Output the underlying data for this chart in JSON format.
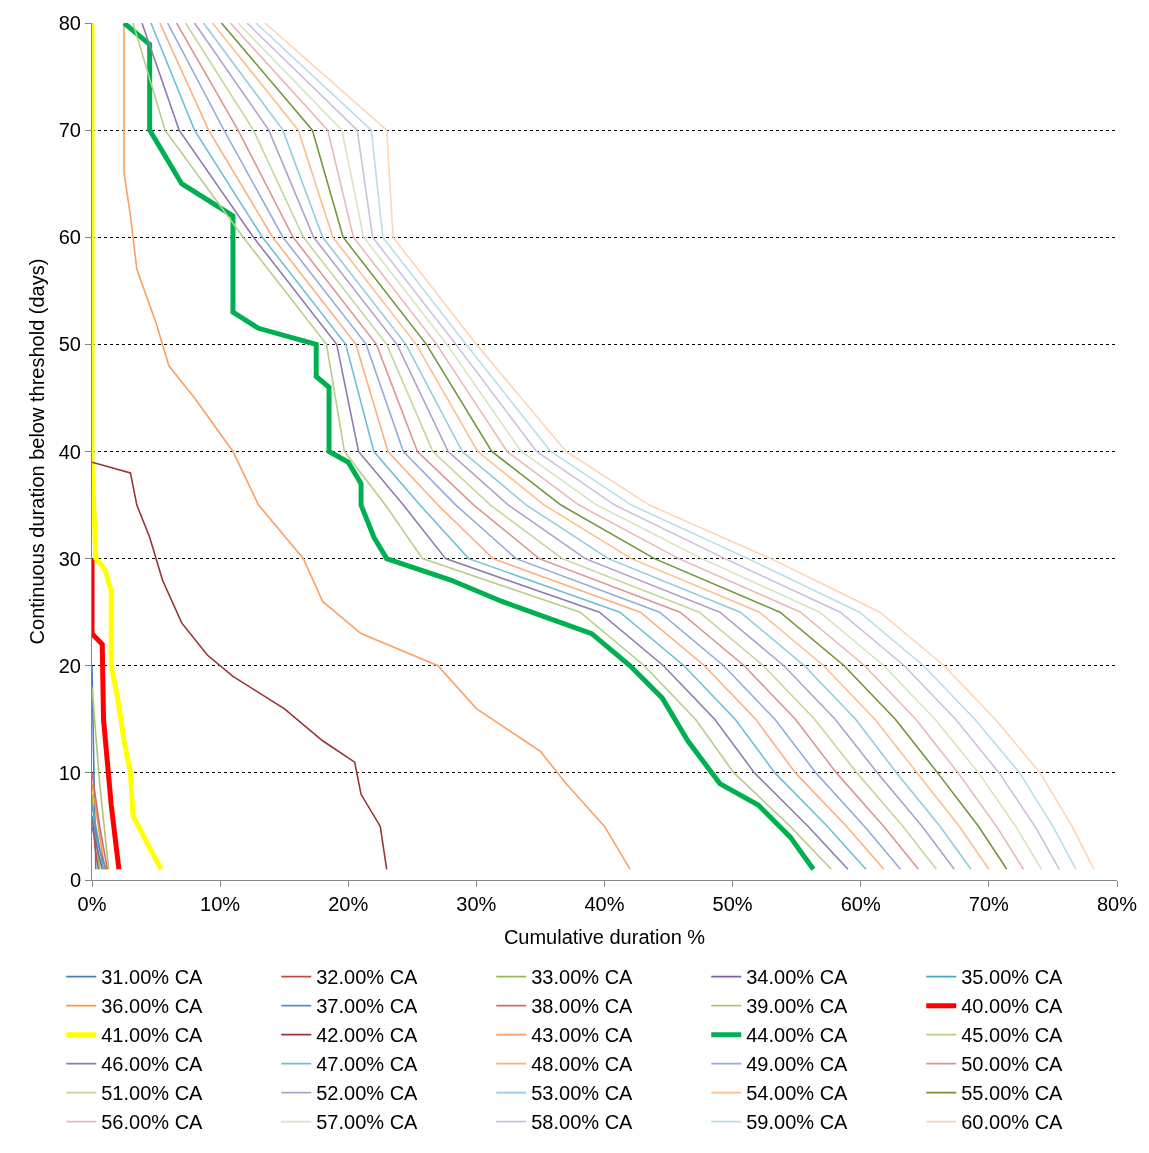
{
  "chart_data": {
    "type": "line",
    "xlabel": "Cumulative duration %",
    "ylabel": "Continuous duration below threshold (days)",
    "xlim": [
      0,
      80
    ],
    "ylim": [
      0,
      80
    ],
    "xticks": [
      {
        "value": 0,
        "label": "0%"
      },
      {
        "value": 10,
        "label": "10%"
      },
      {
        "value": 20,
        "label": "20%"
      },
      {
        "value": 30,
        "label": "30%"
      },
      {
        "value": 40,
        "label": "40%"
      },
      {
        "value": 50,
        "label": "50%"
      },
      {
        "value": 60,
        "label": "60%"
      },
      {
        "value": 70,
        "label": "70%"
      },
      {
        "value": 80,
        "label": "80%"
      }
    ],
    "yticks": [
      0,
      10,
      20,
      30,
      40,
      50,
      60,
      70,
      80
    ],
    "grid": "y",
    "legend": "bottom",
    "marker": "none",
    "line_style": "solid",
    "series": [
      {
        "name": "31.00% CA",
        "color": "#4a7ebb",
        "x": [
          0.3,
          0.15,
          0
        ],
        "values": [
          1,
          10,
          20
        ]
      },
      {
        "name": "32.00% CA",
        "color": "#be4b48",
        "x": [
          0.5,
          0.25,
          0
        ],
        "values": [
          1,
          3,
          6
        ]
      },
      {
        "name": "33.00% CA",
        "color": "#98b954",
        "x": [
          0.6,
          0.3,
          0
        ],
        "values": [
          1,
          4,
          8
        ]
      },
      {
        "name": "34.00% CA",
        "color": "#7d60a0",
        "x": [
          0.8,
          0.4,
          0
        ],
        "values": [
          1,
          3,
          5
        ]
      },
      {
        "name": "35.00% CA",
        "color": "#46aac5",
        "x": [
          0.9,
          0.45,
          0
        ],
        "values": [
          1,
          4,
          7
        ]
      },
      {
        "name": "36.00% CA",
        "color": "#f79646",
        "x": [
          1.0,
          0.5,
          0
        ],
        "values": [
          1,
          5,
          9
        ]
      },
      {
        "name": "37.00% CA",
        "color": "#5b8bc9",
        "x": [
          1.1,
          0.55,
          0
        ],
        "values": [
          1,
          3,
          6
        ]
      },
      {
        "name": "38.00% CA",
        "color": "#cd6b69",
        "x": [
          1.2,
          0.6,
          0
        ],
        "values": [
          1,
          5,
          10
        ]
      },
      {
        "name": "39.00% CA",
        "color": "#aac574",
        "x": [
          1.3,
          0.6,
          0
        ],
        "values": [
          1,
          9,
          18
        ]
      },
      {
        "name": "40.00% CA",
        "color": "#ff0000",
        "x": [
          2.1,
          1.5,
          1.2,
          0.9,
          0.8,
          0,
          0
        ],
        "values": [
          1,
          7,
          11,
          15,
          22,
          23,
          30
        ]
      },
      {
        "name": "41.00% CA",
        "color": "#ffff00",
        "x": [
          5.4,
          4.5,
          3.2,
          3,
          2.5,
          2,
          1.5,
          1.5,
          1,
          0.3,
          0,
          0
        ],
        "values": [
          1,
          3,
          6,
          10,
          13,
          17,
          20,
          27,
          29,
          30,
          39,
          80
        ]
      },
      {
        "name": "42.00% CA",
        "color": "#943634",
        "x": [
          23,
          22.5,
          21,
          20.5,
          18,
          15,
          11,
          9,
          7,
          5.5,
          4.5,
          3.5,
          3,
          0
        ],
        "values": [
          1,
          5,
          8,
          11,
          13,
          16,
          19,
          21,
          24,
          28,
          32,
          35,
          38,
          39
        ]
      },
      {
        "name": "43.00% CA",
        "color": "#f9a063",
        "x": [
          42,
          40,
          37,
          35,
          30,
          27,
          21,
          18,
          16.5,
          13,
          11,
          8,
          6,
          5,
          3.5,
          3,
          2.5,
          2.5
        ],
        "values": [
          1,
          5,
          9,
          12,
          16,
          20,
          23,
          26,
          30,
          35,
          40,
          45,
          48,
          52,
          57,
          62,
          66,
          80
        ]
      },
      {
        "name": "44.00% CA",
        "color": "#00b050",
        "x": [
          56.3,
          54.5,
          52,
          49,
          46.5,
          44.5,
          42,
          39,
          35.5,
          32,
          28,
          23,
          22,
          21,
          21,
          20,
          18.5,
          18.5,
          17.5,
          17.5,
          13,
          11,
          11,
          7,
          5,
          4.5,
          4.5,
          2.5
        ],
        "values": [
          1,
          4,
          7,
          9,
          13,
          17,
          20,
          23,
          24.5,
          26,
          28,
          30,
          32,
          35,
          37,
          39,
          40,
          46,
          47,
          50,
          51.5,
          53,
          62,
          65,
          69,
          70,
          78,
          80
        ]
      },
      {
        "name": "45.00% CA",
        "color": "#b3cf88",
        "x": [
          57.7,
          54.5,
          50.1,
          47.1,
          43.1,
          38.1,
          25.8,
          22.9,
          19.7,
          18.3,
          11.8,
          5.7,
          3.2
        ],
        "values": [
          1,
          5,
          10,
          15,
          20,
          25,
          30,
          35,
          40,
          50,
          60,
          70,
          80
        ]
      },
      {
        "name": "46.00% CA",
        "color": "#8f7bb0",
        "x": [
          59.0,
          55.9,
          51.7,
          48.6,
          44.6,
          39.6,
          27.6,
          24.3,
          20.8,
          19.1,
          12.6,
          6.8,
          3.9
        ],
        "values": [
          1,
          5,
          10,
          15,
          20,
          25,
          30,
          35,
          40,
          50,
          60,
          70,
          80
        ]
      },
      {
        "name": "47.00% CA",
        "color": "#6fbfd6",
        "x": [
          60.4,
          57.4,
          53.3,
          50.2,
          46.2,
          41.2,
          29.4,
          25.6,
          22.0,
          19.8,
          13.3,
          8.0,
          4.6
        ],
        "values": [
          1,
          5,
          10,
          15,
          20,
          25,
          30,
          35,
          40,
          50,
          60,
          70,
          80
        ]
      },
      {
        "name": "48.00% CA",
        "color": "#fab07f",
        "x": [
          61.8,
          58.9,
          54.9,
          51.8,
          47.8,
          42.8,
          31.3,
          27.0,
          23.1,
          20.6,
          14.1,
          9.1,
          5.3
        ],
        "values": [
          1,
          5,
          10,
          15,
          20,
          25,
          30,
          35,
          40,
          50,
          60,
          70,
          80
        ]
      },
      {
        "name": "49.00% CA",
        "color": "#93acd9",
        "x": [
          63.1,
          60.3,
          56.5,
          53.3,
          49.3,
          44.3,
          33.1,
          28.4,
          24.3,
          21.4,
          14.9,
          10.3,
          5.9
        ],
        "values": [
          1,
          5,
          10,
          15,
          20,
          25,
          30,
          35,
          40,
          50,
          60,
          70,
          80
        ]
      },
      {
        "name": "50.00% CA",
        "color": "#d99694",
        "x": [
          64.5,
          61.8,
          58.1,
          54.9,
          50.9,
          45.9,
          34.9,
          29.8,
          25.4,
          22.2,
          15.7,
          11.4,
          6.6
        ],
        "values": [
          1,
          5,
          10,
          15,
          20,
          25,
          30,
          35,
          40,
          50,
          60,
          70,
          80
        ]
      },
      {
        "name": "51.00% CA",
        "color": "#c3d69b",
        "x": [
          65.9,
          63.3,
          59.7,
          56.4,
          52.4,
          47.4,
          36.7,
          31.1,
          26.6,
          23.0,
          16.5,
          12.6,
          7.3
        ],
        "values": [
          1,
          5,
          10,
          15,
          20,
          25,
          30,
          35,
          40,
          50,
          60,
          70,
          80
        ]
      },
      {
        "name": "52.00% CA",
        "color": "#b2a1c7",
        "x": [
          67.3,
          64.8,
          61.3,
          58.0,
          54.0,
          49.0,
          38.5,
          32.5,
          27.8,
          23.8,
          17.3,
          13.8,
          8.0
        ],
        "values": [
          1,
          5,
          10,
          15,
          20,
          25,
          30,
          35,
          40,
          50,
          60,
          70,
          80
        ]
      },
      {
        "name": "53.00% CA",
        "color": "#92cddc",
        "x": [
          68.6,
          66.2,
          62.8,
          59.6,
          55.6,
          50.6,
          40.3,
          33.9,
          28.9,
          24.5,
          18.0,
          14.9,
          8.7
        ],
        "values": [
          1,
          5,
          10,
          15,
          20,
          25,
          30,
          35,
          40,
          50,
          60,
          70,
          80
        ]
      },
      {
        "name": "54.00% CA",
        "color": "#fac090",
        "x": [
          70.0,
          67.7,
          64.4,
          61.1,
          57.1,
          52.1,
          42.1,
          35.3,
          30.1,
          25.3,
          18.8,
          16.1,
          9.4
        ],
        "values": [
          1,
          5,
          10,
          15,
          20,
          25,
          30,
          35,
          40,
          50,
          60,
          70,
          80
        ]
      },
      {
        "name": "55.00% CA",
        "color": "#77933c",
        "x": [
          71.4,
          69.2,
          66.0,
          62.7,
          58.7,
          53.7,
          43.9,
          36.6,
          31.2,
          26.1,
          19.6,
          17.2,
          10.1
        ],
        "values": [
          1,
          5,
          10,
          15,
          20,
          25,
          30,
          35,
          40,
          50,
          60,
          70,
          80
        ]
      },
      {
        "name": "56.00% CA",
        "color": "#e6b9b8",
        "x": [
          72.7,
          70.6,
          67.6,
          64.3,
          60.3,
          55.3,
          45.8,
          38.0,
          32.4,
          26.9,
          20.4,
          18.4,
          10.8
        ],
        "values": [
          1,
          5,
          10,
          15,
          20,
          25,
          30,
          35,
          40,
          50,
          60,
          70,
          80
        ]
      },
      {
        "name": "57.00% CA",
        "color": "#d7e4bd",
        "x": [
          74.1,
          72.1,
          69.2,
          65.8,
          61.8,
          56.8,
          47.6,
          39.4,
          33.5,
          27.7,
          21.2,
          19.5,
          11.4
        ],
        "values": [
          1,
          5,
          10,
          15,
          20,
          25,
          30,
          35,
          40,
          50,
          60,
          70,
          80
        ]
      },
      {
        "name": "58.00% CA",
        "color": "#ccc1da",
        "x": [
          75.5,
          73.6,
          70.8,
          67.4,
          63.4,
          58.4,
          49.4,
          40.8,
          34.7,
          28.4,
          21.9,
          20.7,
          12.1
        ],
        "values": [
          1,
          5,
          10,
          15,
          20,
          25,
          30,
          35,
          40,
          50,
          60,
          70,
          80
        ]
      },
      {
        "name": "59.00% CA",
        "color": "#b7dee8",
        "x": [
          76.8,
          75.0,
          72.4,
          68.9,
          64.9,
          59.9,
          51.2,
          42.1,
          35.8,
          29.2,
          22.7,
          21.8,
          12.8
        ],
        "values": [
          1,
          5,
          10,
          15,
          20,
          25,
          30,
          35,
          40,
          50,
          60,
          70,
          80
        ]
      },
      {
        "name": "60.00% CA",
        "color": "#fcd5b5",
        "x": [
          78.2,
          76.5,
          74,
          70.5,
          66.5,
          61.5,
          53,
          43.5,
          37,
          30,
          23.5,
          23,
          13.5
        ],
        "values": [
          1,
          5,
          10,
          15,
          20,
          25,
          30,
          35,
          40,
          50,
          60,
          70,
          80
        ]
      }
    ]
  }
}
